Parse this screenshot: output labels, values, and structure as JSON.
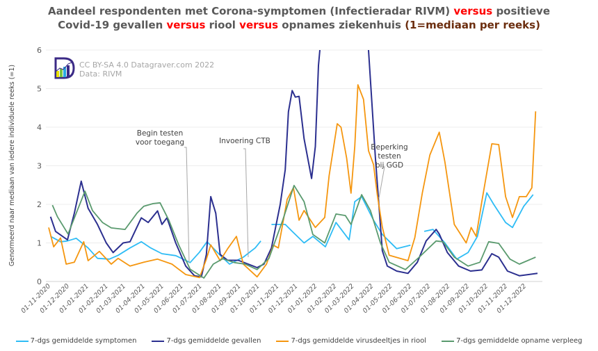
{
  "title": {
    "parts": [
      {
        "text": "Aandeel respondenten met Corona-symptomen (Infectieradar RIVM) ",
        "style": "n"
      },
      {
        "text": "versus",
        "style": "r"
      },
      {
        "text": " positieve",
        "style": "n"
      },
      {
        "text": "\n",
        "style": "br"
      },
      {
        "text": "Covid-19 gevallen ",
        "style": "n"
      },
      {
        "text": "versus",
        "style": "r"
      },
      {
        "text": " riool ",
        "style": "n"
      },
      {
        "text": "versus",
        "style": "r"
      },
      {
        "text": " opnames ziekenhuis  ",
        "style": "n"
      },
      {
        "text": "(1=mediaan per reeks)",
        "style": "b"
      }
    ]
  },
  "credit": {
    "line1": "CC BY-SA 4.0 Datagraver.com 2022",
    "line2": "Data: RIVM",
    "logo_text": "D"
  },
  "colors": {
    "accent_red": "#ff0000",
    "brown": "#6b2d0e"
  },
  "chart_data": {
    "type": "line",
    "ylabel": "Genormeerd naar mediaan van iedere individuele reeks (=1)",
    "xlabel": "",
    "ylim": [
      0,
      6
    ],
    "yticks": [
      "0",
      "1",
      "2",
      "3",
      "4",
      "5",
      "6"
    ],
    "xlim": [
      "2020-10-25",
      "2022-12-31"
    ],
    "xticks": [
      "01-11-2020",
      "01-12-2020",
      "01-01-2021",
      "01-02-2021",
      "01-03-2021",
      "01-04-2021",
      "01-05-2021",
      "01-06-2021",
      "01-07-2021",
      "01-08-2021",
      "01-09-2021",
      "01-10-2021",
      "01-11-2021",
      "01-12-2021",
      "01-01-2022",
      "01-02-2022",
      "01-03-2022",
      "01-04-2022",
      "01-05-2022",
      "01-06-2022",
      "01-07-2022",
      "01-08-2022",
      "01-09-2022",
      "01-10-2022",
      "01-11-2022",
      "01-12-2022"
    ],
    "grid": true,
    "legend_position": "bottom",
    "annotations": [
      {
        "text": [
          "Begin testen",
          "voor toegang"
        ],
        "date": "2021-06-23"
      },
      {
        "text": [
          "Invoering CTB"
        ],
        "date": "2021-09-25"
      },
      {
        "text": [
          "Beperking",
          "testen",
          "bij GGD"
        ],
        "date": "2022-04-11"
      }
    ],
    "series": [
      {
        "name": "7-dgs gemiddelde symptomen",
        "color": "#2ebcf5",
        "points": [
          [
            "2020-11-04",
            1.17
          ],
          [
            "2020-11-20",
            1.03
          ],
          [
            "2020-12-01",
            1.05
          ],
          [
            "2020-12-15",
            1.12
          ],
          [
            "2021-01-03",
            0.87
          ],
          [
            "2021-01-18",
            0.6
          ],
          [
            "2021-02-06",
            0.58
          ],
          [
            "2021-02-20",
            0.68
          ],
          [
            "2021-03-11",
            0.87
          ],
          [
            "2021-03-29",
            1.03
          ],
          [
            "2021-04-13",
            0.87
          ],
          [
            "2021-05-01",
            0.72
          ],
          [
            "2021-05-23",
            0.67
          ],
          [
            "2021-06-15",
            0.49
          ],
          [
            "2021-06-30",
            0.76
          ],
          [
            "2021-07-12",
            1.03
          ],
          [
            "2021-08-02",
            0.68
          ],
          [
            "2021-08-17",
            0.45
          ],
          [
            "2021-09-08",
            0.63
          ],
          [
            "2021-09-27",
            0.87
          ],
          [
            "2021-10-06",
            1.05
          ],
          null,
          [
            "2021-10-23",
            1.48
          ],
          [
            "2021-11-14",
            1.48
          ],
          [
            "2021-11-25",
            1.3
          ],
          [
            "2021-12-14",
            1.0
          ],
          [
            "2021-12-28",
            1.17
          ],
          [
            "2022-01-17",
            0.9
          ],
          [
            "2022-02-03",
            1.53
          ],
          [
            "2022-02-24",
            1.08
          ],
          [
            "2022-03-05",
            2.07
          ],
          [
            "2022-03-16",
            2.2
          ],
          [
            "2022-04-04",
            1.59
          ],
          [
            "2022-04-18",
            1.22
          ],
          [
            "2022-05-11",
            0.85
          ],
          [
            "2022-06-02",
            0.94
          ],
          null,
          [
            "2022-06-24",
            1.3
          ],
          [
            "2022-07-08",
            1.35
          ],
          [
            "2022-07-27",
            1.0
          ],
          [
            "2022-08-15",
            0.58
          ],
          [
            "2022-09-02",
            0.75
          ],
          [
            "2022-09-17",
            1.17
          ],
          [
            "2022-10-02",
            2.3
          ],
          [
            "2022-10-13",
            2.0
          ],
          [
            "2022-11-01",
            1.53
          ],
          [
            "2022-11-12",
            1.4
          ],
          [
            "2022-11-30",
            1.95
          ],
          [
            "2022-12-15",
            2.25
          ]
        ]
      },
      {
        "name": "7-dgs gemiddelde gevallen",
        "color": "#2b2f8f",
        "points": [
          [
            "2020-11-04",
            1.68
          ],
          [
            "2020-11-12",
            1.3
          ],
          [
            "2020-12-01",
            1.08
          ],
          [
            "2020-12-12",
            1.77
          ],
          [
            "2020-12-23",
            2.6
          ],
          [
            "2021-01-03",
            1.9
          ],
          [
            "2021-01-18",
            1.48
          ],
          [
            "2021-02-01",
            1.0
          ],
          [
            "2021-02-12",
            0.75
          ],
          [
            "2021-02-28",
            1.0
          ],
          [
            "2021-03-11",
            1.03
          ],
          [
            "2021-03-29",
            1.65
          ],
          [
            "2021-04-09",
            1.53
          ],
          [
            "2021-04-24",
            1.83
          ],
          [
            "2021-05-01",
            1.48
          ],
          [
            "2021-05-09",
            1.65
          ],
          [
            "2021-05-23",
            1.0
          ],
          [
            "2021-06-08",
            0.4
          ],
          [
            "2021-06-22",
            0.15
          ],
          [
            "2021-07-03",
            0.12
          ],
          [
            "2021-07-11",
            0.7
          ],
          [
            "2021-07-18",
            2.2
          ],
          [
            "2021-07-26",
            1.77
          ],
          [
            "2021-08-02",
            0.7
          ],
          [
            "2021-08-14",
            0.55
          ],
          [
            "2021-08-31",
            0.55
          ],
          [
            "2021-09-16",
            0.45
          ],
          [
            "2021-09-30",
            0.36
          ],
          [
            "2021-10-11",
            0.45
          ],
          [
            "2021-10-23",
            0.87
          ],
          [
            "2021-11-06",
            2.0
          ],
          [
            "2021-11-14",
            2.9
          ],
          [
            "2021-11-19",
            4.4
          ],
          [
            "2021-11-25",
            4.95
          ],
          [
            "2021-11-30",
            4.78
          ],
          [
            "2021-12-06",
            4.8
          ],
          [
            "2021-12-14",
            3.7
          ],
          [
            "2021-12-26",
            2.67
          ],
          [
            "2022-01-01",
            3.5
          ],
          [
            "2022-01-06",
            5.6
          ],
          [
            "2022-01-11",
            6.5
          ],
          [
            "2022-03-25",
            6.5
          ],
          [
            "2022-04-07",
            3.2
          ],
          [
            "2022-04-18",
            0.8
          ],
          [
            "2022-04-26",
            0.4
          ],
          [
            "2022-05-11",
            0.27
          ],
          [
            "2022-05-29",
            0.21
          ],
          [
            "2022-06-13",
            0.5
          ],
          [
            "2022-06-27",
            1.05
          ],
          [
            "2022-07-13",
            1.35
          ],
          [
            "2022-07-18",
            1.23
          ],
          [
            "2022-07-31",
            0.75
          ],
          [
            "2022-08-18",
            0.4
          ],
          [
            "2022-09-06",
            0.27
          ],
          [
            "2022-09-24",
            0.3
          ],
          [
            "2022-10-10",
            0.72
          ],
          [
            "2022-10-21",
            0.63
          ],
          [
            "2022-11-04",
            0.27
          ],
          [
            "2022-11-23",
            0.15
          ],
          [
            "2022-12-22",
            0.21
          ]
        ]
      },
      {
        "name": "7-dgs gemiddelde virusdeeltjes in riool",
        "color": "#f5960f",
        "points": [
          [
            "2020-11-01",
            1.4
          ],
          [
            "2020-11-09",
            0.9
          ],
          [
            "2020-11-20",
            1.13
          ],
          [
            "2020-11-29",
            0.45
          ],
          [
            "2020-12-12",
            0.5
          ],
          [
            "2020-12-27",
            1.03
          ],
          [
            "2021-01-03",
            0.54
          ],
          [
            "2021-01-21",
            0.78
          ],
          [
            "2021-02-09",
            0.45
          ],
          [
            "2021-02-20",
            0.6
          ],
          [
            "2021-03-11",
            0.4
          ],
          [
            "2021-04-02",
            0.5
          ],
          [
            "2021-04-24",
            0.58
          ],
          [
            "2021-05-17",
            0.45
          ],
          [
            "2021-06-08",
            0.18
          ],
          [
            "2021-06-30",
            0.1
          ],
          [
            "2021-07-11",
            0.58
          ],
          [
            "2021-07-18",
            0.95
          ],
          [
            "2021-08-02",
            0.54
          ],
          [
            "2021-08-14",
            0.85
          ],
          [
            "2021-08-28",
            1.17
          ],
          [
            "2021-09-08",
            0.45
          ],
          [
            "2021-09-30",
            0.12
          ],
          [
            "2021-10-15",
            0.45
          ],
          [
            "2021-10-26",
            0.94
          ],
          [
            "2021-11-03",
            0.87
          ],
          [
            "2021-11-17",
            2.13
          ],
          [
            "2021-11-27",
            2.43
          ],
          [
            "2021-12-06",
            1.59
          ],
          [
            "2021-12-14",
            1.84
          ],
          [
            "2022-01-01",
            1.4
          ],
          [
            "2022-01-16",
            1.66
          ],
          [
            "2022-01-23",
            2.74
          ],
          [
            "2022-02-05",
            4.09
          ],
          [
            "2022-02-11",
            4.0
          ],
          [
            "2022-02-20",
            3.2
          ],
          [
            "2022-02-27",
            2.29
          ],
          [
            "2022-03-05",
            3.5
          ],
          [
            "2022-03-10",
            5.1
          ],
          [
            "2022-03-19",
            4.72
          ],
          [
            "2022-03-27",
            3.39
          ],
          [
            "2022-04-04",
            3.03
          ],
          [
            "2022-04-10",
            2.25
          ],
          [
            "2022-04-18",
            1.41
          ],
          [
            "2022-04-29",
            0.68
          ],
          [
            "2022-05-29",
            0.54
          ],
          [
            "2022-06-09",
            1.14
          ],
          [
            "2022-06-21",
            2.3
          ],
          [
            "2022-07-03",
            3.28
          ],
          [
            "2022-07-18",
            3.87
          ],
          [
            "2022-07-27",
            3.1
          ],
          [
            "2022-08-11",
            1.48
          ],
          [
            "2022-08-30",
            1.0
          ],
          [
            "2022-09-07",
            1.4
          ],
          [
            "2022-09-15",
            1.17
          ],
          [
            "2022-09-24",
            2.07
          ],
          [
            "2022-10-10",
            3.57
          ],
          [
            "2022-10-21",
            3.55
          ],
          [
            "2022-11-01",
            2.2
          ],
          [
            "2022-11-12",
            1.66
          ],
          [
            "2022-11-23",
            2.2
          ],
          [
            "2022-12-04",
            2.2
          ],
          [
            "2022-12-13",
            2.43
          ],
          [
            "2022-12-19",
            4.41
          ]
        ]
      },
      {
        "name": "7-dgs gemiddelde opname verpleeg",
        "color": "#5a9a6e",
        "points": [
          [
            "2020-11-07",
            1.98
          ],
          [
            "2020-11-15",
            1.68
          ],
          [
            "2020-12-02",
            1.23
          ],
          [
            "2020-12-15",
            1.77
          ],
          [
            "2020-12-29",
            2.34
          ],
          [
            "2021-01-10",
            1.84
          ],
          [
            "2021-01-26",
            1.53
          ],
          [
            "2021-02-09",
            1.39
          ],
          [
            "2021-03-03",
            1.35
          ],
          [
            "2021-03-22",
            1.77
          ],
          [
            "2021-04-02",
            1.95
          ],
          [
            "2021-04-17",
            2.02
          ],
          [
            "2021-04-28",
            2.04
          ],
          [
            "2021-05-12",
            1.59
          ],
          [
            "2021-05-28",
            0.94
          ],
          [
            "2021-06-15",
            0.32
          ],
          [
            "2021-07-07",
            0.09
          ],
          [
            "2021-07-22",
            0.45
          ],
          [
            "2021-08-06",
            0.59
          ],
          [
            "2021-08-25",
            0.49
          ],
          [
            "2021-09-11",
            0.45
          ],
          [
            "2021-09-30",
            0.31
          ],
          [
            "2021-10-19",
            0.6
          ],
          [
            "2021-11-10",
            1.59
          ],
          [
            "2021-11-28",
            2.49
          ],
          [
            "2021-12-14",
            2.07
          ],
          [
            "2021-12-28",
            1.22
          ],
          [
            "2022-01-16",
            1.0
          ],
          [
            "2022-02-03",
            1.75
          ],
          [
            "2022-02-18",
            1.71
          ],
          [
            "2022-02-27",
            1.48
          ],
          [
            "2022-03-16",
            2.25
          ],
          [
            "2022-03-30",
            1.84
          ],
          [
            "2022-04-15",
            1.0
          ],
          [
            "2022-04-29",
            0.5
          ],
          [
            "2022-05-25",
            0.31
          ],
          [
            "2022-06-16",
            0.63
          ],
          [
            "2022-07-13",
            1.05
          ],
          [
            "2022-07-24",
            1.03
          ],
          [
            "2022-08-11",
            0.63
          ],
          [
            "2022-09-02",
            0.4
          ],
          [
            "2022-09-21",
            0.5
          ],
          [
            "2022-10-05",
            1.03
          ],
          [
            "2022-10-21",
            0.99
          ],
          [
            "2022-11-08",
            0.58
          ],
          [
            "2022-11-23",
            0.45
          ],
          [
            "2022-12-19",
            0.63
          ]
        ]
      }
    ]
  }
}
